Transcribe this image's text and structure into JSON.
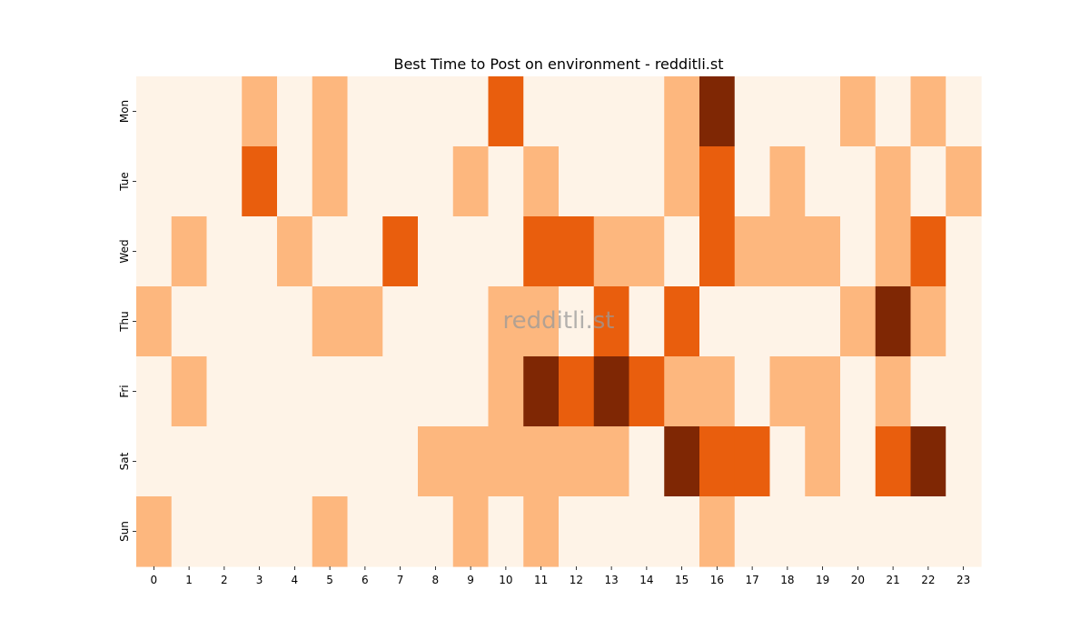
{
  "chart_data": {
    "type": "heatmap",
    "title": "Best Time to Post on environment - redditli.st",
    "xlabel": "",
    "ylabel": "",
    "x_categories": [
      "0",
      "1",
      "2",
      "3",
      "4",
      "5",
      "6",
      "7",
      "8",
      "9",
      "10",
      "11",
      "12",
      "13",
      "14",
      "15",
      "16",
      "17",
      "18",
      "19",
      "20",
      "21",
      "22",
      "23"
    ],
    "y_categories": [
      "Mon",
      "Tue",
      "Wed",
      "Thu",
      "Fri",
      "Sat",
      "Sun"
    ],
    "values": [
      [
        0,
        0,
        0,
        1,
        0,
        1,
        0,
        0,
        0,
        0,
        2,
        0,
        0,
        0,
        0,
        1,
        3,
        0,
        0,
        0,
        1,
        0,
        1,
        0
      ],
      [
        0,
        0,
        0,
        2,
        0,
        1,
        0,
        0,
        0,
        1,
        0,
        1,
        0,
        0,
        0,
        1,
        2,
        0,
        1,
        0,
        0,
        1,
        0,
        1
      ],
      [
        0,
        1,
        0,
        0,
        1,
        0,
        0,
        2,
        0,
        0,
        0,
        2,
        2,
        1,
        1,
        0,
        2,
        1,
        1,
        1,
        0,
        1,
        2,
        0
      ],
      [
        1,
        0,
        0,
        0,
        0,
        1,
        1,
        0,
        0,
        0,
        1,
        1,
        0,
        2,
        0,
        2,
        0,
        0,
        0,
        0,
        1,
        3,
        1,
        0
      ],
      [
        0,
        1,
        0,
        0,
        0,
        0,
        0,
        0,
        0,
        0,
        1,
        3,
        2,
        3,
        2,
        1,
        1,
        0,
        1,
        1,
        0,
        1,
        0,
        0
      ],
      [
        0,
        0,
        0,
        0,
        0,
        0,
        0,
        0,
        1,
        1,
        1,
        1,
        1,
        1,
        0,
        3,
        2,
        2,
        0,
        1,
        0,
        2,
        3,
        0
      ],
      [
        1,
        0,
        0,
        0,
        0,
        1,
        0,
        0,
        0,
        1,
        0,
        1,
        0,
        0,
        0,
        0,
        1,
        0,
        0,
        0,
        0,
        0,
        0,
        0
      ]
    ],
    "colormap": [
      "#fef3e7",
      "#fdb77e",
      "#e95e0d",
      "#7f2704"
    ],
    "legend": "none",
    "grid": false,
    "watermark": "redditli.st"
  }
}
